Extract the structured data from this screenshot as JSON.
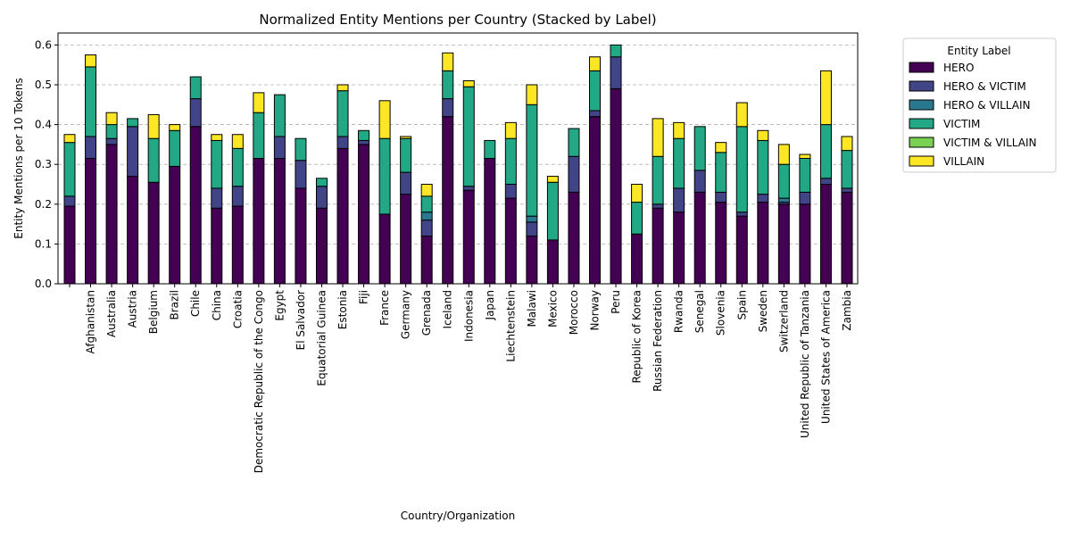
{
  "chart_data": {
    "type": "bar",
    "stacked": true,
    "title": "Normalized Entity Mentions per Country (Stacked by Label)",
    "xlabel": "Country/Organization",
    "ylabel": "Entity Mentions per 10 Tokens",
    "ylim": [
      0,
      0.63
    ],
    "yticks": [
      "0.0",
      "0.1",
      "0.2",
      "0.3",
      "0.4",
      "0.5",
      "0.6"
    ],
    "grid": "y-dashed",
    "legend": {
      "title": "Entity Label",
      "placement": "outside-top-right"
    },
    "categories": [
      "",
      "Afghanistan",
      "Australia",
      "Austria",
      "Belgium",
      "Brazil",
      "Chile",
      "China",
      "Croatia",
      "Democratic Republic of the Congo",
      "Egypt",
      "El Salvador",
      "Equatorial Guinea",
      "Estonia",
      "Fiji",
      "France",
      "Germany",
      "Grenada",
      "Iceland",
      "Indonesia",
      "Japan",
      "Liechtenstein",
      "Malawi",
      "Mexico",
      "Morocco",
      "Norway",
      "Peru",
      "Republic of Korea",
      "Russian Federation",
      "Rwanda",
      "Senegal",
      "Slovenia",
      "Spain",
      "Sweden",
      "Switzerland",
      "United Republic of Tanzania",
      "United States of America",
      "Zambia"
    ],
    "series": [
      {
        "name": "HERO",
        "color": "#440154",
        "values": [
          0.195,
          0.315,
          0.35,
          0.27,
          0.255,
          0.295,
          0.395,
          0.19,
          0.195,
          0.315,
          0.315,
          0.24,
          0.19,
          0.34,
          0.35,
          0.175,
          0.225,
          0.12,
          0.42,
          0.235,
          0.315,
          0.215,
          0.12,
          0.11,
          0.23,
          0.42,
          0.49,
          0.125,
          0.19,
          0.18,
          0.23,
          0.205,
          0.17,
          0.205,
          0.2,
          0.2,
          0.25,
          0.23
        ]
      },
      {
        "name": "HERO & VICTIM",
        "color": "#414487",
        "values": [
          0.025,
          0.055,
          0.015,
          0.125,
          0.0,
          0.0,
          0.07,
          0.05,
          0.05,
          0.0,
          0.055,
          0.07,
          0.055,
          0.03,
          0.01,
          0.0,
          0.055,
          0.04,
          0.045,
          0.01,
          0.0,
          0.035,
          0.035,
          0.0,
          0.09,
          0.015,
          0.08,
          0.0,
          0.01,
          0.06,
          0.055,
          0.025,
          0.01,
          0.02,
          0.005,
          0.03,
          0.015,
          0.01
        ]
      },
      {
        "name": "HERO & VILLAIN",
        "color": "#2a788e",
        "values": [
          0.0,
          0.0,
          0.0,
          0.0,
          0.0,
          0.0,
          0.0,
          0.0,
          0.0,
          0.0,
          0.0,
          0.0,
          0.0,
          0.0,
          0.0,
          0.0,
          0.0,
          0.02,
          0.0,
          0.0,
          0.0,
          0.0,
          0.015,
          0.0,
          0.0,
          0.0,
          0.0,
          0.0,
          0.0,
          0.0,
          0.0,
          0.0,
          0.0,
          0.0,
          0.01,
          0.0,
          0.0,
          0.0
        ]
      },
      {
        "name": "VICTIM",
        "color": "#22a884",
        "values": [
          0.135,
          0.175,
          0.035,
          0.02,
          0.11,
          0.09,
          0.055,
          0.12,
          0.095,
          0.115,
          0.105,
          0.055,
          0.02,
          0.115,
          0.025,
          0.19,
          0.085,
          0.04,
          0.07,
          0.25,
          0.045,
          0.115,
          0.28,
          0.145,
          0.07,
          0.1,
          0.03,
          0.08,
          0.12,
          0.125,
          0.11,
          0.1,
          0.215,
          0.135,
          0.085,
          0.085,
          0.135,
          0.095
        ]
      },
      {
        "name": "VICTIM & VILLAIN",
        "color": "#7ad151",
        "values": [
          0,
          0,
          0,
          0,
          0,
          0,
          0,
          0,
          0,
          0,
          0,
          0,
          0,
          0,
          0,
          0,
          0,
          0,
          0,
          0,
          0,
          0,
          0,
          0,
          0,
          0,
          0,
          0,
          0,
          0,
          0,
          0,
          0,
          0,
          0,
          0,
          0,
          0
        ]
      },
      {
        "name": "VILLAIN",
        "color": "#fde725",
        "values": [
          0.02,
          0.03,
          0.03,
          0.0,
          0.06,
          0.015,
          0.0,
          0.015,
          0.035,
          0.05,
          0.0,
          0.0,
          0.0,
          0.015,
          0.0,
          0.095,
          0.005,
          0.03,
          0.045,
          0.015,
          0.0,
          0.04,
          0.05,
          0.015,
          0.0,
          0.035,
          0.0,
          0.045,
          0.095,
          0.04,
          0.0,
          0.025,
          0.06,
          0.025,
          0.05,
          0.01,
          0.135,
          0.035
        ]
      }
    ]
  }
}
